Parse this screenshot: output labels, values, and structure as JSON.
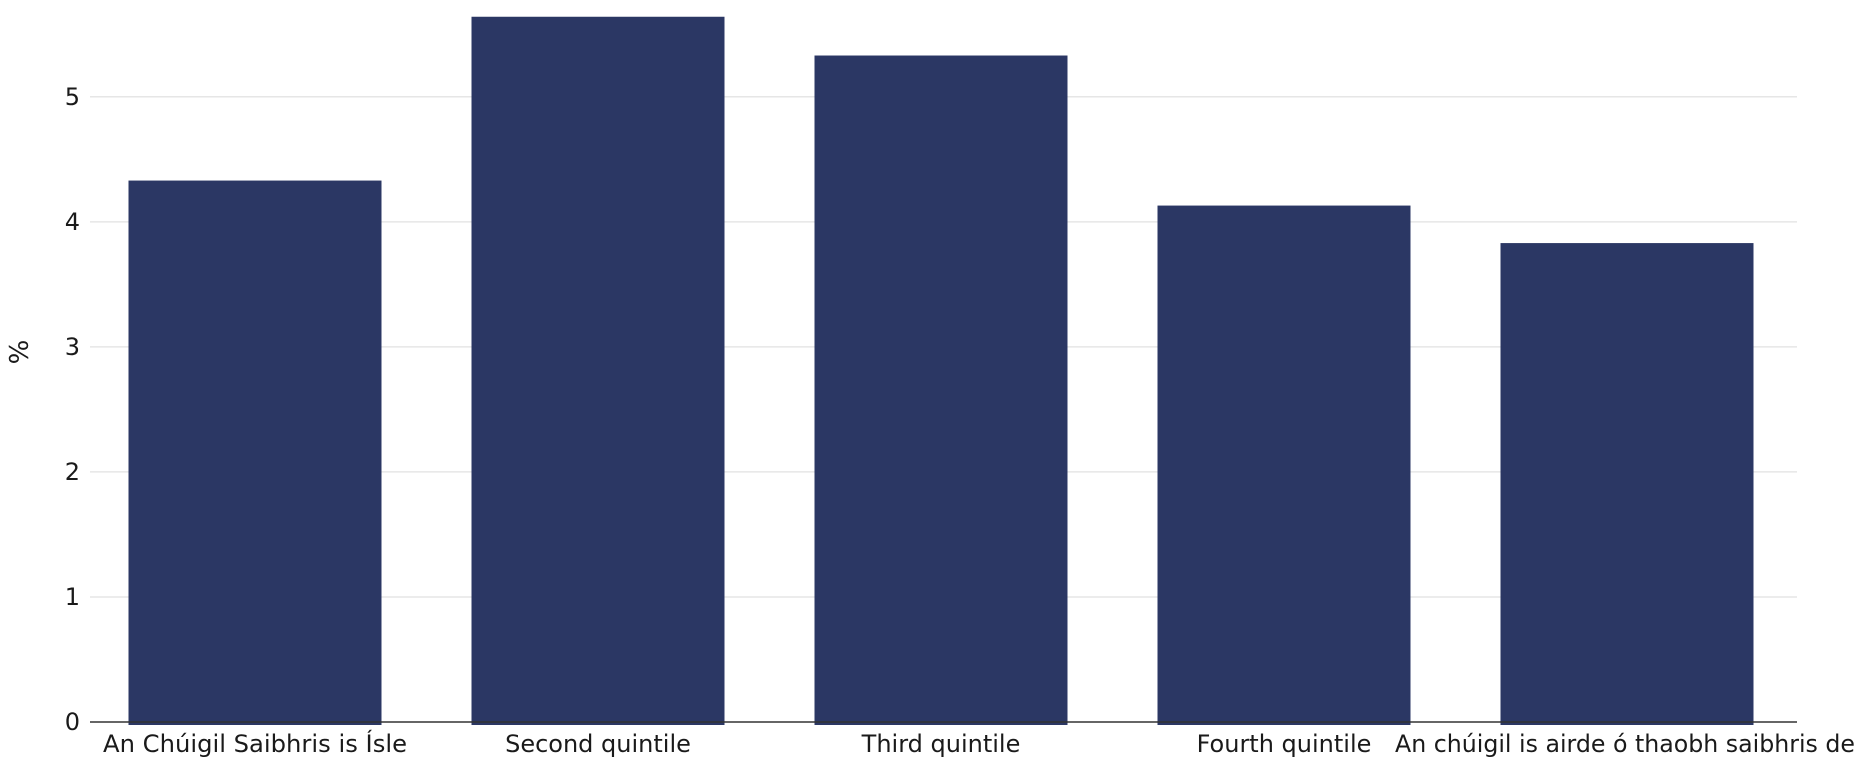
{
  "chart_data": {
    "type": "bar",
    "title": "",
    "xlabel": "",
    "ylabel": "%",
    "ylim": [
      0,
      5.67
    ],
    "yticks": [
      0,
      1,
      2,
      3,
      4,
      5
    ],
    "categories": [
      "An Chúigil Saibhris is Ísle",
      "Second quintile",
      "Third quintile",
      "Fourth quintile",
      "An chúigil is airde ó thaobh saibhris de"
    ],
    "values": [
      4.33,
      5.64,
      5.33,
      4.13,
      3.83
    ],
    "bar_color": "#2b3764",
    "grid": true,
    "grid_color": "#e6e6e6",
    "axis_color": "#333333",
    "legend": "none"
  }
}
